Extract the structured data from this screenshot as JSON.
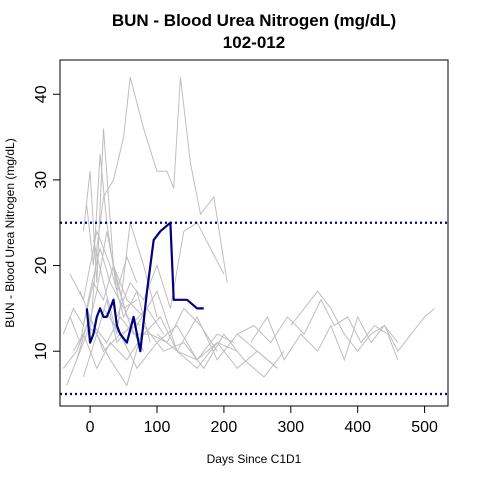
{
  "chart_data": {
    "type": "line",
    "title": "BUN - Blood Urea Nitrogen (mg/dL)",
    "subtitle": "102-012",
    "xlabel": "Days Since C1D1",
    "ylabel": "BUN - Blood Urea Nitrogen (mg/dL)",
    "xlim": [
      -45,
      535
    ],
    "ylim": [
      3.6,
      44
    ],
    "x_ticks": [
      0,
      100,
      200,
      300,
      400,
      500
    ],
    "y_ticks": [
      10,
      20,
      30,
      40
    ],
    "x_tick_labels": [
      "0",
      "100",
      "200",
      "300",
      "400",
      "500"
    ],
    "y_tick_labels": [
      "10",
      "20",
      "30",
      "40"
    ],
    "grid": false,
    "legend": "none",
    "colors": {
      "highlight": "#000080",
      "background_series": "#bebebe",
      "reference_lines": "#000080",
      "frame": "#000000"
    },
    "reference_lines": [
      {
        "y": 25,
        "style": "dotted"
      },
      {
        "y": 5,
        "style": "dotted"
      }
    ],
    "highlight_series": {
      "x": [
        -5,
        0,
        5,
        10,
        15,
        20,
        25,
        30,
        35,
        40,
        45,
        55,
        65,
        75,
        85,
        95,
        105,
        120,
        125,
        135,
        145,
        160,
        170
      ],
      "y": [
        15,
        11,
        12,
        14,
        15,
        14,
        14,
        15,
        16,
        13,
        12,
        11,
        14,
        10,
        17,
        23,
        24,
        25,
        16,
        16,
        16,
        15,
        15
      ]
    },
    "background_series": [
      {
        "x": [
          -40,
          -25,
          -10,
          5,
          20,
          35,
          55,
          75
        ],
        "y": [
          12,
          15,
          13,
          18,
          16,
          20,
          14,
          13
        ]
      },
      {
        "x": [
          -30,
          -15,
          0,
          15,
          30,
          50,
          70
        ],
        "y": [
          14,
          11,
          17,
          22,
          18,
          15,
          16
        ]
      },
      {
        "x": [
          -20,
          -5,
          10,
          25,
          40,
          60,
          85,
          110
        ],
        "y": [
          9,
          13,
          12,
          16,
          11,
          13,
          15,
          12
        ]
      },
      {
        "x": [
          -35,
          -20,
          -5,
          10,
          25,
          40,
          60,
          80
        ],
        "y": [
          6,
          9,
          12,
          17,
          24,
          18,
          13,
          10
        ]
      },
      {
        "x": [
          -10,
          0,
          10,
          20,
          35,
          55,
          80
        ],
        "y": [
          24,
          31,
          18,
          36,
          20,
          16,
          14
        ]
      },
      {
        "x": [
          -5,
          5,
          15,
          25,
          40,
          55,
          70
        ],
        "y": [
          27,
          20,
          33,
          25,
          17,
          21,
          18
        ]
      },
      {
        "x": [
          0,
          10,
          20,
          35,
          50,
          60,
          80,
          100,
          115,
          125,
          135,
          150,
          165,
          185,
          205
        ],
        "y": [
          12,
          22,
          28,
          30,
          35,
          42,
          36,
          31,
          31,
          29,
          42,
          32,
          26,
          28,
          18
        ]
      },
      {
        "x": [
          40,
          60,
          80,
          100,
          120,
          140,
          160,
          180,
          200
        ],
        "y": [
          14,
          18,
          16,
          20,
          15,
          24,
          25,
          22,
          19
        ]
      },
      {
        "x": [
          -15,
          5,
          25,
          45,
          65,
          90,
          115,
          140,
          165,
          190
        ],
        "y": [
          17,
          13,
          11,
          14,
          12,
          12,
          11,
          15,
          13,
          10
        ]
      },
      {
        "x": [
          -25,
          -10,
          10,
          30,
          55,
          80,
          105,
          130,
          160,
          190,
          220
        ],
        "y": [
          10,
          12,
          8,
          11,
          9,
          12,
          14,
          10,
          8,
          11,
          10
        ]
      },
      {
        "x": [
          -40,
          -20,
          0,
          20,
          45,
          70,
          100,
          130,
          160,
          190,
          215
        ],
        "y": [
          8,
          10,
          14,
          10,
          12,
          8,
          11,
          13,
          9,
          12,
          11
        ]
      },
      {
        "x": [
          -10,
          10,
          30,
          55,
          80,
          110,
          140,
          170,
          200,
          230,
          260,
          290
        ],
        "y": [
          7,
          12,
          9,
          6,
          13,
          10,
          11,
          8,
          12,
          9,
          7,
          10
        ]
      },
      {
        "x": [
          20,
          45,
          70,
          100,
          130,
          160,
          190,
          220,
          250,
          280
        ],
        "y": [
          15,
          12,
          13,
          17,
          10,
          14,
          9,
          12,
          10,
          8
        ]
      },
      {
        "x": [
          220,
          245,
          270,
          295,
          320,
          345,
          365,
          385,
          405,
          425,
          445,
          460
        ],
        "y": [
          12,
          13,
          11,
          14,
          12,
          16,
          13,
          14,
          11,
          13,
          12,
          9
        ]
      },
      {
        "x": [
          240,
          265,
          290,
          315,
          340,
          360,
          380,
          400,
          420,
          440,
          460,
          480,
          500,
          515
        ],
        "y": [
          11,
          14,
          9,
          12,
          10,
          13,
          9,
          14,
          11,
          13,
          10,
          12,
          14,
          15
        ]
      },
      {
        "x": [
          300,
          320,
          340,
          360,
          380,
          400,
          420,
          440,
          460
        ],
        "y": [
          13,
          15,
          17,
          15,
          12,
          10,
          12,
          13,
          11
        ]
      },
      {
        "x": [
          100,
          130,
          160,
          190,
          220,
          250,
          280
        ],
        "y": [
          12,
          10,
          9,
          11,
          8,
          10,
          8
        ]
      },
      {
        "x": [
          5,
          20,
          40,
          60,
          80,
          100
        ],
        "y": [
          23,
          18,
          12,
          25,
          20,
          14
        ]
      },
      {
        "x": [
          -30,
          -10,
          10,
          30,
          50,
          70,
          90
        ],
        "y": [
          19,
          16,
          24,
          20,
          14,
          17,
          11
        ]
      }
    ]
  }
}
